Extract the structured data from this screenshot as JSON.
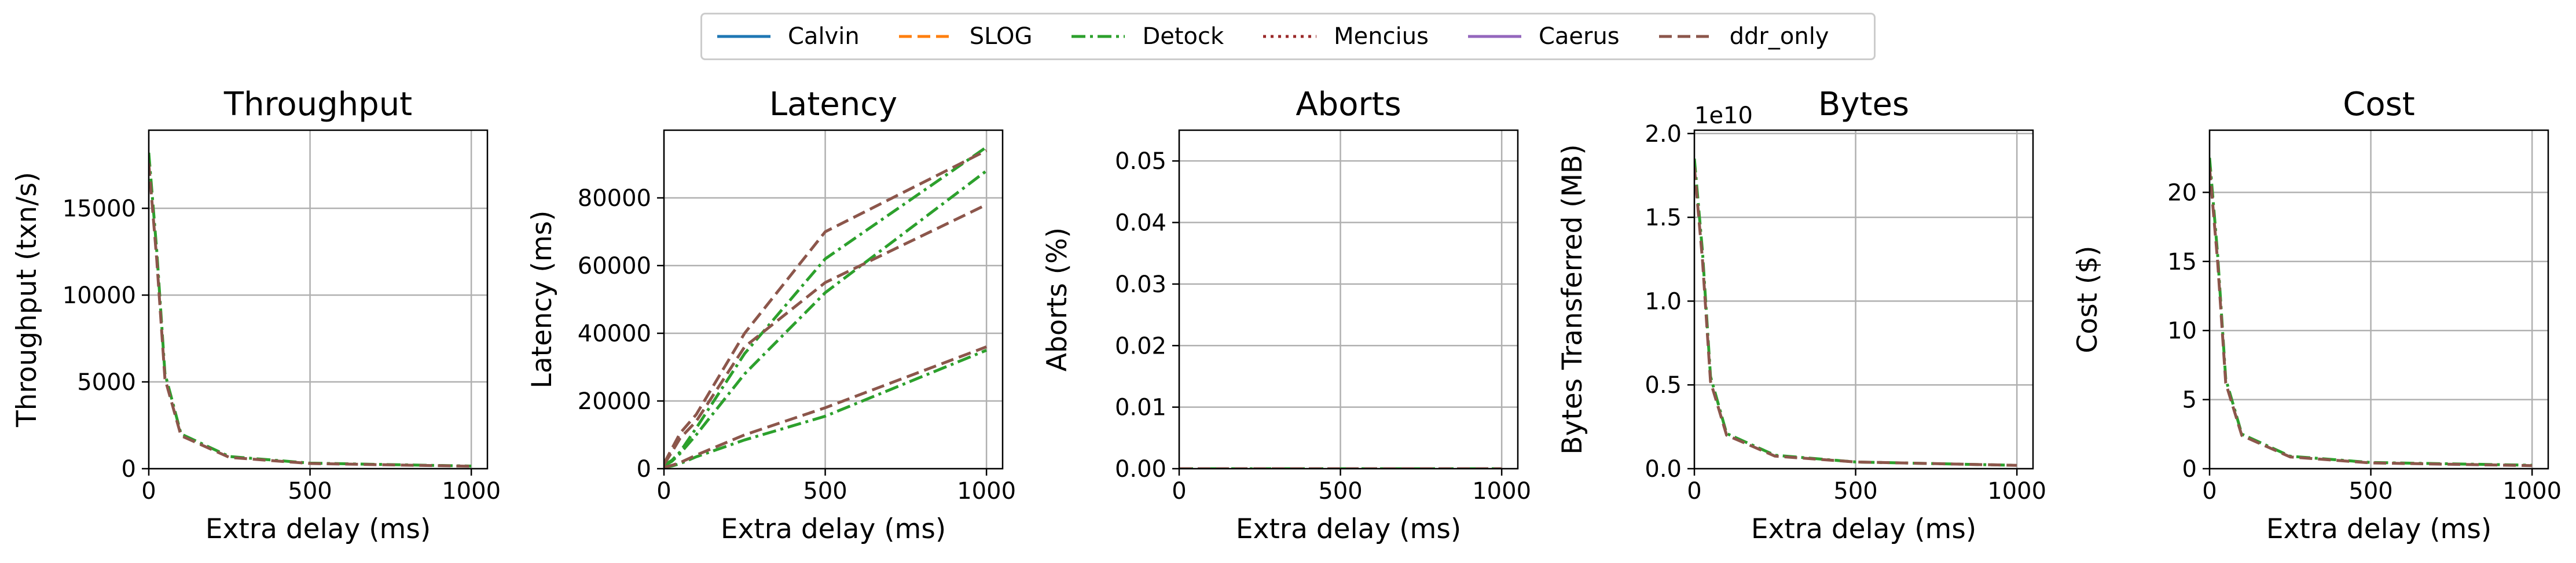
{
  "colors": {
    "Calvin": "#1f77b4",
    "SLOG": "#ff7f0e",
    "Detock": "#2ca02c",
    "Mencius": "#9b2a2a",
    "Caerus": "#9467bd",
    "ddr_only": "#8c564b"
  },
  "legend": [
    {
      "name": "Calvin",
      "style": "solid"
    },
    {
      "name": "SLOG",
      "style": "dashed"
    },
    {
      "name": "Detock",
      "style": "dashdot"
    },
    {
      "name": "Mencius",
      "style": "dotted"
    },
    {
      "name": "Caerus",
      "style": "solid"
    },
    {
      "name": "ddr_only",
      "style": "dashed"
    }
  ],
  "chart_data": [
    {
      "type": "line",
      "title": "Throughput",
      "xlabel": "Extra delay (ms)",
      "ylabel": "Throughput (txn/s)",
      "xlim": [
        0,
        1050
      ],
      "ylim": [
        0,
        19500
      ],
      "xticks": [
        0,
        500,
        1000
      ],
      "yticks": [
        0,
        5000,
        10000,
        15000
      ],
      "xtick_labels": [
        "0",
        "500",
        "1000"
      ],
      "ytick_labels": [
        "0",
        "5000",
        "10000",
        "15000"
      ],
      "grid": true,
      "series": [
        {
          "name": "Detock",
          "style": "dashdot",
          "x": [
            0,
            25,
            50,
            100,
            250,
            500,
            1000
          ],
          "y": [
            18200,
            12500,
            5500,
            2000,
            700,
            320,
            150
          ]
        },
        {
          "name": "ddr_only",
          "style": "dashed",
          "x": [
            0,
            25,
            50,
            100,
            250,
            500,
            1000
          ],
          "y": [
            17600,
            12000,
            5200,
            1900,
            650,
            300,
            140
          ]
        }
      ]
    },
    {
      "type": "line",
      "title": "Latency",
      "xlabel": "Extra delay (ms)",
      "ylabel": "Latency (ms)",
      "xlim": [
        0,
        1050
      ],
      "ylim": [
        0,
        100000
      ],
      "xticks": [
        0,
        500,
        1000
      ],
      "yticks": [
        0,
        20000,
        40000,
        60000,
        80000
      ],
      "xtick_labels": [
        "0",
        "500",
        "1000"
      ],
      "ytick_labels": [
        "0",
        "20000",
        "40000",
        "60000",
        "80000"
      ],
      "grid": true,
      "series": [
        {
          "name": "Detock",
          "style": "dashdot",
          "x": [
            0,
            25,
            50,
            100,
            250,
            500,
            1000
          ],
          "y": [
            1000,
            2500,
            5000,
            12000,
            34000,
            62000,
            95000
          ]
        },
        {
          "name": "Detock",
          "style": "dashdot",
          "x": [
            0,
            25,
            50,
            100,
            250,
            500,
            1000
          ],
          "y": [
            800,
            2200,
            4500,
            10000,
            28000,
            52000,
            88000
          ]
        },
        {
          "name": "Detock",
          "style": "dashdot",
          "x": [
            0,
            25,
            50,
            100,
            250,
            500,
            1000
          ],
          "y": [
            300,
            800,
            1500,
            3500,
            8500,
            15500,
            35000
          ]
        },
        {
          "name": "ddr_only",
          "style": "dashed",
          "x": [
            0,
            25,
            50,
            100,
            250,
            500,
            1000
          ],
          "y": [
            1500,
            6000,
            10500,
            16000,
            40000,
            70000,
            94000
          ]
        },
        {
          "name": "ddr_only",
          "style": "dashed",
          "x": [
            0,
            25,
            50,
            100,
            250,
            500,
            1000
          ],
          "y": [
            1200,
            5000,
            9000,
            14000,
            36000,
            55000,
            78000
          ]
        },
        {
          "name": "ddr_only",
          "style": "dashed",
          "x": [
            0,
            25,
            50,
            100,
            250,
            500,
            1000
          ],
          "y": [
            400,
            1000,
            1800,
            4000,
            10000,
            18000,
            36000
          ]
        }
      ]
    },
    {
      "type": "line",
      "title": "Aborts",
      "xlabel": "Extra delay (ms)",
      "ylabel": "Aborts (%)",
      "xlim": [
        0,
        1050
      ],
      "ylim": [
        0,
        0.055
      ],
      "xticks": [
        0,
        500,
        1000
      ],
      "yticks": [
        0,
        0.01,
        0.02,
        0.03,
        0.04,
        0.05
      ],
      "xtick_labels": [
        "0",
        "500",
        "1000"
      ],
      "ytick_labels": [
        "0.00",
        "0.01",
        "0.02",
        "0.03",
        "0.04",
        "0.05"
      ],
      "grid": true,
      "series": [
        {
          "name": "Detock",
          "style": "dashdot",
          "x": [
            0,
            25,
            50,
            100,
            250,
            500,
            1000
          ],
          "y": [
            0,
            0,
            0,
            0,
            0,
            0,
            0
          ]
        },
        {
          "name": "ddr_only",
          "style": "dashed",
          "x": [
            0,
            25,
            50,
            100,
            250,
            500,
            1000
          ],
          "y": [
            0,
            0,
            0,
            0,
            0,
            0,
            0
          ]
        }
      ]
    },
    {
      "type": "line",
      "title": "Bytes",
      "xlabel": "Extra delay (ms)",
      "ylabel": "Bytes Transferred (MB)",
      "offset_label": "1e10",
      "xlim": [
        0,
        1050
      ],
      "ylim": [
        0,
        2.02
      ],
      "xticks": [
        0,
        500,
        1000
      ],
      "yticks": [
        0,
        0.5,
        1.0,
        1.5,
        2.0
      ],
      "xtick_labels": [
        "0",
        "500",
        "1000"
      ],
      "ytick_labels": [
        "0.0",
        "0.5",
        "1.0",
        "1.5",
        "2.0"
      ],
      "grid": true,
      "series": [
        {
          "name": "Detock",
          "style": "dashdot",
          "x": [
            0,
            25,
            50,
            100,
            250,
            500,
            1000
          ],
          "y": [
            1.85,
            1.3,
            0.55,
            0.21,
            0.08,
            0.04,
            0.02
          ]
        },
        {
          "name": "ddr_only",
          "style": "dashed",
          "x": [
            0,
            25,
            50,
            100,
            250,
            500,
            1000
          ],
          "y": [
            1.8,
            1.25,
            0.52,
            0.2,
            0.075,
            0.04,
            0.02
          ]
        }
      ]
    },
    {
      "type": "line",
      "title": "Cost",
      "xlabel": "Extra delay (ms)",
      "ylabel": "Cost ($)",
      "xlim": [
        0,
        1050
      ],
      "ylim": [
        0,
        24.5
      ],
      "xticks": [
        0,
        500,
        1000
      ],
      "yticks": [
        0,
        5,
        10,
        15,
        20
      ],
      "xtick_labels": [
        "0",
        "500",
        "1000"
      ],
      "ytick_labels": [
        "0",
        "5",
        "10",
        "15",
        "20"
      ],
      "grid": true,
      "series": [
        {
          "name": "Detock",
          "style": "dashdot",
          "x": [
            0,
            25,
            50,
            100,
            250,
            500,
            1000
          ],
          "y": [
            22.5,
            15.5,
            6.5,
            2.5,
            0.9,
            0.45,
            0.25
          ]
        },
        {
          "name": "ddr_only",
          "style": "dashed",
          "x": [
            0,
            25,
            50,
            100,
            250,
            500,
            1000
          ],
          "y": [
            21.8,
            15.0,
            6.2,
            2.4,
            0.85,
            0.42,
            0.22
          ]
        }
      ]
    }
  ]
}
